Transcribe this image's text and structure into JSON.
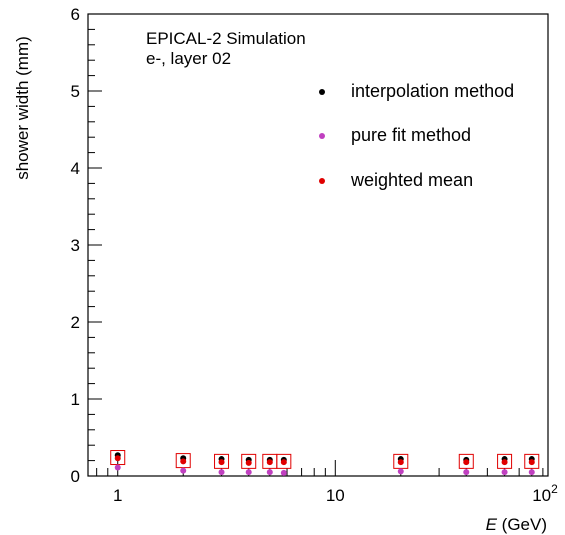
{
  "chart_data": {
    "type": "scatter",
    "title_lines": [
      "EPICAL-2 Simulation",
      "e-, layer 02"
    ],
    "xlabel_var": "E",
    "xlabel_unit": " (GeV)",
    "ylabel": "shower width (mm)",
    "x_scale": "log",
    "xlim": [
      0.73,
      95
    ],
    "ylim": [
      0,
      6
    ],
    "y_ticks": [
      "0",
      "1",
      "2",
      "3",
      "4",
      "5",
      "6"
    ],
    "x_ticks": [
      {
        "value": 1,
        "label": "1"
      },
      {
        "value": 10,
        "label": "10"
      }
    ],
    "x_tick_100": {
      "base": "10",
      "exp": "2"
    },
    "legend_position": "top-right",
    "grid": false,
    "x": [
      1,
      2,
      3,
      4,
      5,
      5.8,
      20,
      40,
      60,
      80
    ],
    "series": [
      {
        "name": "interpolation method",
        "color": "#000000",
        "values": [
          0.27,
          0.23,
          0.22,
          0.21,
          0.21,
          0.21,
          0.22,
          0.21,
          0.22,
          0.22
        ]
      },
      {
        "name": "pure fit method",
        "color": "#c040c0",
        "values": [
          0.11,
          0.07,
          0.05,
          0.05,
          0.05,
          0.04,
          0.06,
          0.05,
          0.05,
          0.05
        ]
      },
      {
        "name": "weighted mean",
        "color": "#e00000",
        "values": [
          0.23,
          0.19,
          0.18,
          0.17,
          0.18,
          0.18,
          0.18,
          0.18,
          0.18,
          0.18
        ]
      }
    ],
    "box_series": {
      "color": "#e00000",
      "values": [
        0.24,
        0.2,
        0.19,
        0.19,
        0.19,
        0.19,
        0.19,
        0.19,
        0.19,
        0.19
      ]
    }
  }
}
